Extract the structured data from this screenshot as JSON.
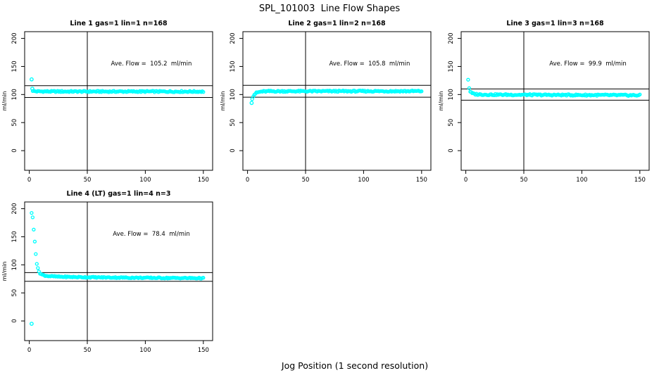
{
  "page": {
    "title": "SPL_101003  Line Flow Shapes",
    "xlabel": "Jog Position (1 second resolution)",
    "background": "#ffffff",
    "text_color": "#000000"
  },
  "style": {
    "point_color": "#00ffff",
    "axis_color": "#000000"
  },
  "chart_data": [
    {
      "type": "scatter",
      "title": "Line 1 gas=1 lin=1 n=168",
      "ylabel": "ml/min",
      "ave_flow": 105.2,
      "annotation": "Ave. Flow =  105.2  ml/min",
      "hline_upper": 115.7,
      "hline_lower": 94.7,
      "vline_x": 50,
      "xticks": [
        0,
        50,
        100,
        150
      ],
      "yticks": [
        0,
        50,
        100,
        150,
        200
      ],
      "xusr": [
        -4,
        158
      ],
      "yusr": [
        -35,
        212
      ],
      "n_points": 165,
      "x_start": 3,
      "x_end": 150,
      "noise_amp": 1.2,
      "curve": [
        [
          3,
          107
        ],
        [
          4,
          106
        ],
        [
          6,
          105.6
        ],
        [
          20,
          105.4
        ],
        [
          150,
          105.3
        ]
      ],
      "extra_points": [
        [
          2,
          127
        ],
        [
          2.6,
          110.5
        ]
      ]
    },
    {
      "type": "scatter",
      "title": "Line 2 gas=1 lin=2 n=168",
      "ylabel": "ml/min",
      "ave_flow": 105.8,
      "annotation": "Ave. Flow =  105.8  ml/min",
      "hline_upper": 116.4,
      "hline_lower": 95.2,
      "vline_x": 50,
      "xticks": [
        0,
        50,
        100,
        150
      ],
      "yticks": [
        0,
        50,
        100,
        150,
        200
      ],
      "xusr": [
        -4,
        158
      ],
      "yusr": [
        -35,
        212
      ],
      "n_points": 165,
      "x_start": 4,
      "x_end": 150,
      "noise_amp": 1.2,
      "curve": [
        [
          4,
          93
        ],
        [
          4.8,
          97
        ],
        [
          6,
          100.5
        ],
        [
          7.5,
          102.8
        ],
        [
          9,
          104
        ],
        [
          12,
          105.2
        ],
        [
          18,
          105.8
        ],
        [
          150,
          106
        ]
      ],
      "extra_points": [
        [
          3.5,
          85
        ]
      ]
    },
    {
      "type": "scatter",
      "title": "Line 3 gas=1 lin=3 n=168",
      "ylabel": "ml/min",
      "ave_flow": 99.9,
      "annotation": "Ave. Flow =  99.9  ml/min",
      "hline_upper": 109.9,
      "hline_lower": 89.9,
      "vline_x": 50,
      "xticks": [
        0,
        50,
        100,
        150
      ],
      "yticks": [
        0,
        50,
        100,
        150,
        200
      ],
      "xusr": [
        -4,
        158
      ],
      "yusr": [
        -35,
        212
      ],
      "n_points": 165,
      "x_start": 2,
      "x_end": 150,
      "noise_amp": 1.3,
      "curve": [
        [
          2,
          127
        ],
        [
          2.5,
          118
        ],
        [
          3,
          110
        ],
        [
          3.8,
          105.5
        ],
        [
          5,
          102.5
        ],
        [
          7,
          101
        ],
        [
          10,
          100.3
        ],
        [
          20,
          99.8
        ],
        [
          60,
          99.4
        ],
        [
          150,
          98.7
        ]
      ],
      "extra_points": []
    },
    {
      "type": "scatter",
      "title": "Line 4 (LT) gas=1 lin=4 n=3",
      "ylabel": "ml/min",
      "ave_flow": 78.4,
      "annotation": "Ave. Flow =  78.4  ml/min",
      "hline_upper": 86.2,
      "hline_lower": 70.6,
      "vline_x": 50,
      "xticks": [
        0,
        50,
        100,
        150
      ],
      "yticks": [
        0,
        50,
        100,
        150,
        200
      ],
      "xusr": [
        -4,
        158
      ],
      "yusr": [
        -35,
        212
      ],
      "n_points": 165,
      "x_start": 2,
      "x_end": 150,
      "noise_amp": 1.0,
      "curve": [
        [
          2,
          193
        ],
        [
          2.9,
          184
        ],
        [
          3.7,
          165
        ],
        [
          4.6,
          145
        ],
        [
          5.4,
          125
        ],
        [
          6.2,
          106
        ],
        [
          7,
          96
        ],
        [
          8,
          89.5
        ],
        [
          9,
          85.5
        ],
        [
          10.5,
          83
        ],
        [
          13,
          81
        ],
        [
          17,
          79.8
        ],
        [
          25,
          78.8
        ],
        [
          45,
          78
        ],
        [
          90,
          77
        ],
        [
          150,
          76.2
        ]
      ],
      "extra_points": [
        [
          2,
          -5
        ]
      ]
    }
  ]
}
